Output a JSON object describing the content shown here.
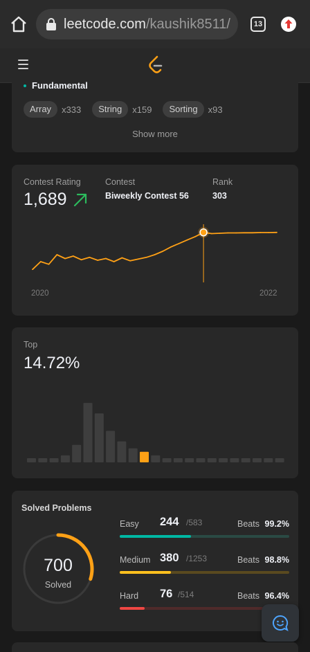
{
  "browser": {
    "url_host": "leetcode.com",
    "url_path": "/kaushik8511/",
    "tab_count": "13"
  },
  "skills": {
    "level_label": "Fundamental",
    "tags": [
      {
        "name": "Array",
        "count": "x333"
      },
      {
        "name": "String",
        "count": "x159"
      },
      {
        "name": "Sorting",
        "count": "x93"
      }
    ],
    "show_more": "Show more"
  },
  "contest": {
    "rating_label": "Contest Rating",
    "rating_value": "1,689",
    "contest_label": "Contest",
    "contest_name": "Biweekly Contest 56",
    "rank_label": "Rank",
    "rank_value": "303",
    "start_year": "2020",
    "end_year": "2022",
    "accent_color": "#ffa116",
    "trend_color": "#2cbb5d"
  },
  "chart_data": [
    {
      "type": "line",
      "series": [
        {
          "values": [
            1475,
            1520,
            1505,
            1560,
            1538,
            1552,
            1531,
            1545,
            1528,
            1538,
            1520,
            1542,
            1525,
            1535,
            1545,
            1560,
            1580,
            1605,
            1625,
            1645,
            1665,
            1689,
            1682,
            1684,
            1686,
            1686,
            1687,
            1687,
            1688,
            1688,
            1689
          ]
        }
      ],
      "highlight_index": 21,
      "ylim": [
        1400,
        1800
      ]
    },
    {
      "type": "bar",
      "values": [
        1,
        1,
        1,
        2,
        5,
        17,
        14,
        9,
        6,
        4,
        3,
        2,
        1,
        1,
        1,
        1,
        1,
        1,
        1,
        1,
        1,
        1,
        1
      ],
      "highlight_index": 10,
      "ylim": [
        0,
        18
      ]
    }
  ],
  "top": {
    "label": "Top",
    "value": "14.72%"
  },
  "solved": {
    "title": "Solved Problems",
    "total": "700",
    "total_label": "Solved",
    "fraction": 0.2981,
    "ring_color": "#ffa116",
    "difficulties": [
      {
        "name": "Easy",
        "solved": "244",
        "total": "/583",
        "beats_label": "Beats",
        "beats": "99.2%",
        "fraction": 0.4185,
        "color": "#00b8a3",
        "track": "#2a4a44"
      },
      {
        "name": "Medium",
        "solved": "380",
        "total": "/1253",
        "beats_label": "Beats",
        "beats": "98.8%",
        "fraction": 0.3033,
        "color": "#ffc01e",
        "track": "#5a4a1f"
      },
      {
        "name": "Hard",
        "solved": "76",
        "total": "/514",
        "beats_label": "Beats",
        "beats": "96.4%",
        "fraction": 0.1479,
        "color": "#ef4743",
        "track": "#4f2a2a"
      }
    ]
  }
}
